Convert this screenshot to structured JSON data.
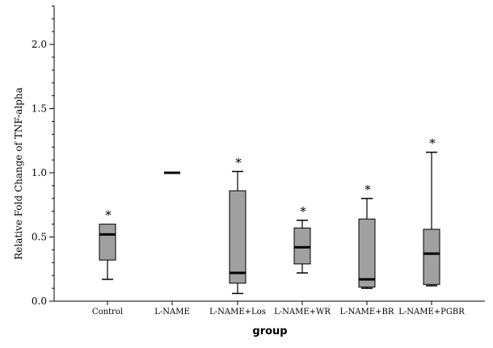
{
  "chart_data": {
    "type": "boxplot",
    "xlabel": "group",
    "ylabel": "Relative Fold Change of TNF-alpha",
    "ylim": [
      0,
      2.3
    ],
    "yticks": [
      "0.0",
      "0.5",
      "1.0",
      "1.5",
      "2.0"
    ],
    "box_color": "#a0a0a0",
    "categories": [
      "Control",
      "L-NAME",
      "L-NAME+Los",
      "L-NAME+WR",
      "L-NAME+BR",
      "L-NAME+PGBR"
    ],
    "boxes": [
      {
        "min": 0.17,
        "q1": 0.32,
        "median": 0.52,
        "q3": 0.6,
        "max": 0.6,
        "annotation": "*"
      },
      {
        "min": 1.0,
        "q1": 1.0,
        "median": 1.0,
        "q3": 1.0,
        "max": 1.0,
        "annotation": ""
      },
      {
        "min": 0.06,
        "q1": 0.14,
        "median": 0.22,
        "q3": 0.86,
        "max": 1.01,
        "annotation": "*"
      },
      {
        "min": 0.22,
        "q1": 0.29,
        "median": 0.42,
        "q3": 0.57,
        "max": 0.63,
        "annotation": "*"
      },
      {
        "min": 0.1,
        "q1": 0.11,
        "median": 0.17,
        "q3": 0.64,
        "max": 0.8,
        "annotation": "*"
      },
      {
        "min": 0.12,
        "q1": 0.13,
        "median": 0.37,
        "q3": 0.56,
        "max": 1.16,
        "annotation": "*"
      }
    ]
  }
}
